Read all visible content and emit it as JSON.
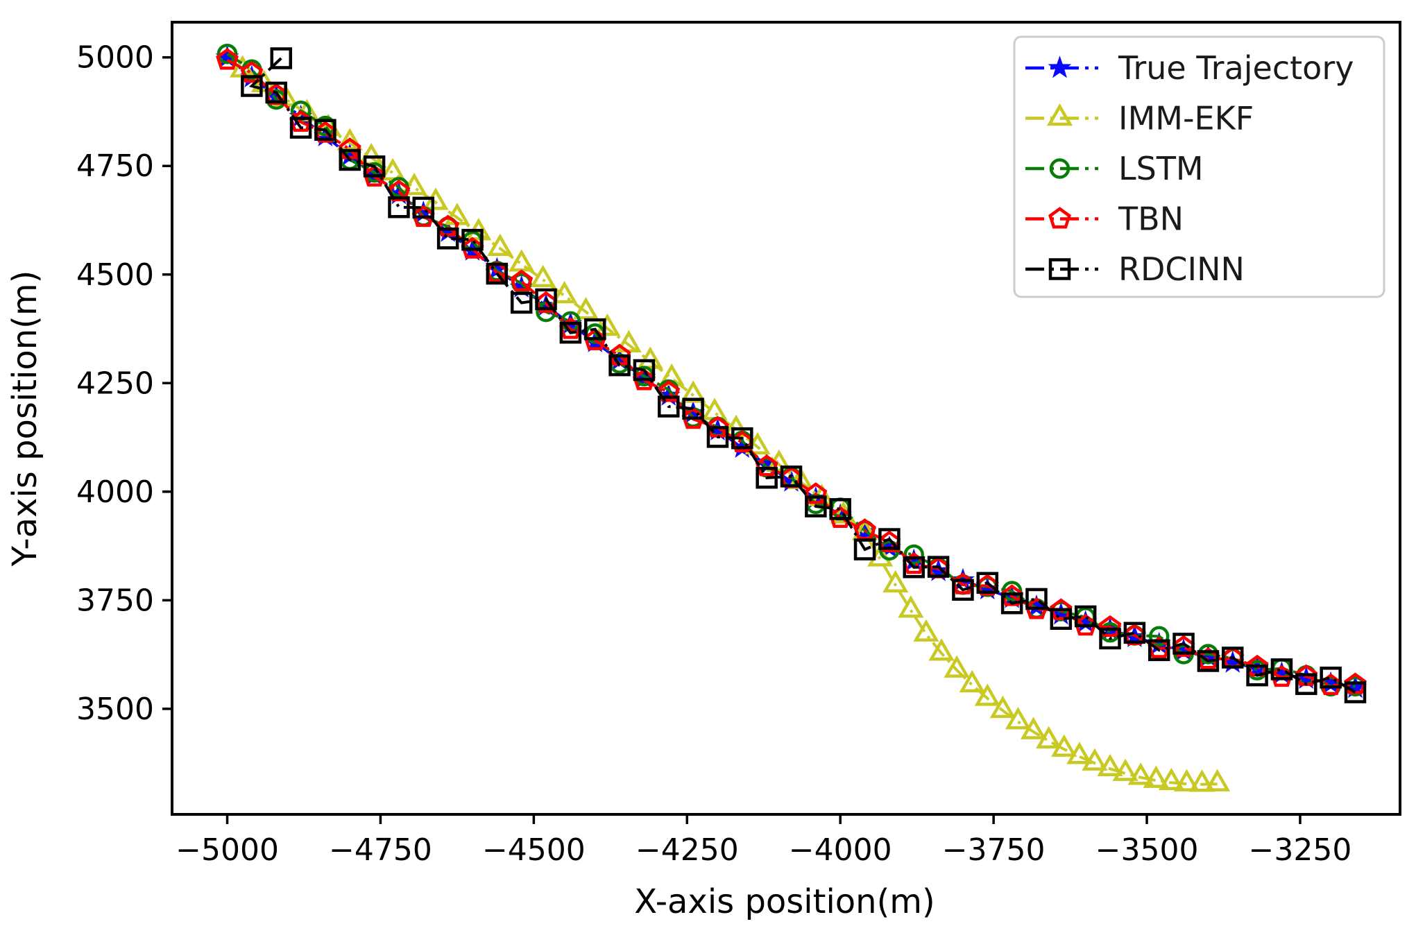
{
  "figure": {
    "background": "#ffffff"
  },
  "chart_data": {
    "type": "line",
    "title": "",
    "xlabel": "X-axis position(m)",
    "ylabel": "Y-axis position(m)",
    "xlim": [
      -5090,
      -3087
    ],
    "ylim": [
      3257,
      5081
    ],
    "xticks": [
      -5000,
      -4750,
      -4500,
      -4250,
      -4000,
      -3750,
      -3500,
      -3250
    ],
    "yticks": [
      5000,
      4750,
      4500,
      4250,
      4000,
      3750,
      3500
    ],
    "grid": false,
    "axis_color": "#000000",
    "tick_label_color": "#000000",
    "legend": {
      "position": "upper right",
      "border_color": "#cccccc",
      "fill": "#ffffff",
      "text_color": "#1a1a1a"
    },
    "series": [
      {
        "name": "True Trajectory",
        "color": "#0909ff",
        "marker": "star",
        "marker_filled": true,
        "linestyle": "dashdot",
        "points": [
          [
            -5000,
            5000
          ],
          [
            -4960,
            4954
          ],
          [
            -4920,
            4909
          ],
          [
            -4880,
            4863
          ],
          [
            -4840,
            4818
          ],
          [
            -4800,
            4774
          ],
          [
            -4760,
            4729
          ],
          [
            -4720,
            4685
          ],
          [
            -4680,
            4642
          ],
          [
            -4640,
            4598
          ],
          [
            -4600,
            4555
          ],
          [
            -4560,
            4512
          ],
          [
            -4520,
            4470
          ],
          [
            -4480,
            4428
          ],
          [
            -4440,
            4386
          ],
          [
            -4400,
            4344
          ],
          [
            -4360,
            4303
          ],
          [
            -4320,
            4262
          ],
          [
            -4280,
            4221
          ],
          [
            -4240,
            4181
          ],
          [
            -4200,
            4141
          ],
          [
            -4160,
            4101
          ],
          [
            -4120,
            4062
          ],
          [
            -4080,
            4023
          ],
          [
            -4040,
            3984
          ],
          [
            -4000,
            3945
          ],
          [
            -3960,
            3907
          ],
          [
            -3920,
            3871
          ],
          [
            -3880,
            3841
          ],
          [
            -3840,
            3817
          ],
          [
            -3800,
            3796
          ],
          [
            -3760,
            3775
          ],
          [
            -3720,
            3755
          ],
          [
            -3680,
            3735
          ],
          [
            -3640,
            3717
          ],
          [
            -3600,
            3699
          ],
          [
            -3560,
            3682
          ],
          [
            -3520,
            3665
          ],
          [
            -3480,
            3649
          ],
          [
            -3440,
            3634
          ],
          [
            -3400,
            3620
          ],
          [
            -3360,
            3606
          ],
          [
            -3320,
            3593
          ],
          [
            -3280,
            3581
          ],
          [
            -3240,
            3569
          ],
          [
            -3200,
            3558
          ],
          [
            -3160,
            3548
          ]
        ]
      },
      {
        "name": "IMM-EKF",
        "color": "#c9c923",
        "marker": "triangle",
        "marker_filled": false,
        "linestyle": "dashdot",
        "points": [
          [
            -4975,
            4971
          ],
          [
            -4940,
            4937
          ],
          [
            -4905,
            4904
          ],
          [
            -4870,
            4870
          ],
          [
            -4835,
            4836
          ],
          [
            -4800,
            4803
          ],
          [
            -4765,
            4769
          ],
          [
            -4730,
            4734
          ],
          [
            -4695,
            4700
          ],
          [
            -4660,
            4666
          ],
          [
            -4625,
            4631
          ],
          [
            -4590,
            4596
          ],
          [
            -4555,
            4560
          ],
          [
            -4520,
            4524
          ],
          [
            -4485,
            4488
          ],
          [
            -4450,
            4451
          ],
          [
            -4415,
            4414
          ],
          [
            -4380,
            4376
          ],
          [
            -4345,
            4338
          ],
          [
            -4310,
            4300
          ],
          [
            -4275,
            4261
          ],
          [
            -4240,
            4222
          ],
          [
            -4205,
            4182
          ],
          [
            -4170,
            4143
          ],
          [
            -4135,
            4103
          ],
          [
            -4100,
            4063
          ],
          [
            -4065,
            4023
          ],
          [
            -4030,
            3984
          ],
          [
            -3995,
            3944
          ],
          [
            -3960,
            3905
          ],
          [
            -3935,
            3845
          ],
          [
            -3910,
            3785
          ],
          [
            -3885,
            3727
          ],
          [
            -3860,
            3672
          ],
          [
            -3835,
            3628
          ],
          [
            -3810,
            3589
          ],
          [
            -3785,
            3555
          ],
          [
            -3760,
            3524
          ],
          [
            -3735,
            3496
          ],
          [
            -3710,
            3470
          ],
          [
            -3685,
            3447
          ],
          [
            -3660,
            3426
          ],
          [
            -3635,
            3407
          ],
          [
            -3610,
            3390
          ],
          [
            -3585,
            3375
          ],
          [
            -3560,
            3362
          ],
          [
            -3535,
            3351
          ],
          [
            -3510,
            3342
          ],
          [
            -3485,
            3335
          ],
          [
            -3460,
            3330
          ],
          [
            -3435,
            3327
          ],
          [
            -3410,
            3326
          ],
          [
            -3385,
            3327
          ]
        ]
      },
      {
        "name": "LSTM",
        "color": "#077d07",
        "marker": "circle",
        "marker_filled": false,
        "linestyle": "dashdot",
        "points": [
          [
            -5000,
            5008
          ],
          [
            -4960,
            4972
          ],
          [
            -4920,
            4903
          ],
          [
            -4880,
            4877
          ],
          [
            -4840,
            4842
          ],
          [
            -4800,
            4764
          ],
          [
            -4760,
            4735
          ],
          [
            -4720,
            4701
          ],
          [
            -4680,
            4634
          ],
          [
            -4640,
            4610
          ],
          [
            -4600,
            4577
          ],
          [
            -4560,
            4508
          ],
          [
            -4520,
            4480
          ],
          [
            -4480,
            4414
          ],
          [
            -4440,
            4392
          ],
          [
            -4400,
            4364
          ],
          [
            -4360,
            4295
          ],
          [
            -4320,
            4266
          ],
          [
            -4280,
            4235
          ],
          [
            -4240,
            4171
          ],
          [
            -4200,
            4149
          ],
          [
            -4160,
            4117
          ],
          [
            -4120,
            4056
          ],
          [
            -4080,
            4033
          ],
          [
            -4040,
            3972
          ],
          [
            -4000,
            3963
          ],
          [
            -3960,
            3911
          ],
          [
            -3920,
            3865
          ],
          [
            -3880,
            3855
          ],
          [
            -3840,
            3825
          ],
          [
            -3800,
            3786
          ],
          [
            -3760,
            3781
          ],
          [
            -3720,
            3771
          ],
          [
            -3680,
            3731
          ],
          [
            -3640,
            3725
          ],
          [
            -3600,
            3711
          ],
          [
            -3560,
            3676
          ],
          [
            -3520,
            3669
          ],
          [
            -3480,
            3667
          ],
          [
            -3440,
            3626
          ],
          [
            -3400,
            3626
          ],
          [
            -3360,
            3616
          ],
          [
            -3320,
            3589
          ],
          [
            -3280,
            3593
          ],
          [
            -3240,
            3577
          ],
          [
            -3200,
            3552
          ],
          [
            -3160,
            3552
          ]
        ]
      },
      {
        "name": "TBN",
        "color": "#ff0000",
        "marker": "pentagon",
        "marker_filled": false,
        "linestyle": "dashdot",
        "points": [
          [
            -5000,
            4994
          ],
          [
            -4960,
            4964
          ],
          [
            -4920,
            4913
          ],
          [
            -4880,
            4851
          ],
          [
            -4840,
            4826
          ],
          [
            -4800,
            4788
          ],
          [
            -4760,
            4725
          ],
          [
            -4720,
            4691
          ],
          [
            -4680,
            4632
          ],
          [
            -4640,
            4610
          ],
          [
            -4600,
            4559
          ],
          [
            -4560,
            4504
          ],
          [
            -4520,
            4484
          ],
          [
            -4480,
            4434
          ],
          [
            -4440,
            4374
          ],
          [
            -4400,
            4348
          ],
          [
            -4360,
            4313
          ],
          [
            -4320,
            4256
          ],
          [
            -4280,
            4229
          ],
          [
            -4240,
            4167
          ],
          [
            -4200,
            4147
          ],
          [
            -4160,
            4113
          ],
          [
            -4120,
            4058
          ],
          [
            -4080,
            4031
          ],
          [
            -4040,
            3994
          ],
          [
            -4000,
            3939
          ],
          [
            -3960,
            3911
          ],
          [
            -3920,
            3883
          ],
          [
            -3880,
            3833
          ],
          [
            -3840,
            3823
          ],
          [
            -3800,
            3786
          ],
          [
            -3760,
            3783
          ],
          [
            -3720,
            3759
          ],
          [
            -3680,
            3729
          ],
          [
            -3640,
            3727
          ],
          [
            -3600,
            3691
          ],
          [
            -3560,
            3688
          ],
          [
            -3520,
            3669
          ],
          [
            -3480,
            3639
          ],
          [
            -3440,
            3642
          ],
          [
            -3400,
            3614
          ],
          [
            -3360,
            3616
          ],
          [
            -3320,
            3597
          ],
          [
            -3280,
            3573
          ],
          [
            -3240,
            3575
          ],
          [
            -3200,
            3554
          ],
          [
            -3160,
            3556
          ]
        ]
      },
      {
        "name": "RDCINN",
        "color": "#000000",
        "marker": "square",
        "marker_filled": false,
        "linestyle": "dashdot",
        "points": [
          [
            -4912,
            4998
          ],
          [
            -4960,
            4934
          ],
          [
            -4920,
            4919
          ],
          [
            -4880,
            4838
          ],
          [
            -4840,
            4833
          ],
          [
            -4800,
            4764
          ],
          [
            -4760,
            4749
          ],
          [
            -4720,
            4655
          ],
          [
            -4680,
            4654
          ],
          [
            -4640,
            4583
          ],
          [
            -4600,
            4580
          ],
          [
            -4560,
            4502
          ],
          [
            -4520,
            4435
          ],
          [
            -4480,
            4443
          ],
          [
            -4440,
            4366
          ],
          [
            -4400,
            4374
          ],
          [
            -4360,
            4291
          ],
          [
            -4320,
            4280
          ],
          [
            -4280,
            4196
          ],
          [
            -4240,
            4191
          ],
          [
            -4200,
            4126
          ],
          [
            -4160,
            4123
          ],
          [
            -4120,
            4032
          ],
          [
            -4080,
            4035
          ],
          [
            -4040,
            3966
          ],
          [
            -4000,
            3960
          ],
          [
            -3960,
            3867
          ],
          [
            -3920,
            3891
          ],
          [
            -3880,
            3826
          ],
          [
            -3840,
            3827
          ],
          [
            -3800,
            3774
          ],
          [
            -3760,
            3790
          ],
          [
            -3720,
            3743
          ],
          [
            -3680,
            3753
          ],
          [
            -3640,
            3707
          ],
          [
            -3600,
            3713
          ],
          [
            -3560,
            3662
          ],
          [
            -3520,
            3675
          ],
          [
            -3480,
            3635
          ],
          [
            -3440,
            3650
          ],
          [
            -3400,
            3610
          ],
          [
            -3360,
            3618
          ],
          [
            -3320,
            3577
          ],
          [
            -3280,
            3591
          ],
          [
            -3240,
            3557
          ],
          [
            -3200,
            3572
          ],
          [
            -3160,
            3538
          ]
        ]
      }
    ]
  }
}
